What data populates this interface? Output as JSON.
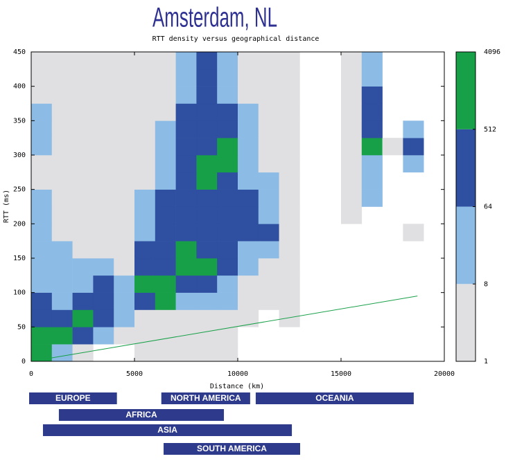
{
  "chart_data": {
    "type": "heatmap",
    "title": "Amsterdam, NL",
    "subtitle": "RTT density versus geographical distance",
    "x_label": "Distance (km)",
    "y_label": "RTT (ms)",
    "xlim": [
      0,
      20000
    ],
    "xticks": [
      0,
      5000,
      10000,
      15000,
      20000
    ],
    "ylim": [
      0,
      450
    ],
    "yticks": [
      0,
      50,
      100,
      150,
      200,
      250,
      300,
      350,
      400,
      450
    ],
    "xbins": [
      0,
      1000,
      2000,
      3000,
      4000,
      5000,
      6000,
      7000,
      8000,
      9000,
      10000,
      11000,
      12000,
      13000,
      14000,
      15000,
      16000,
      17000,
      18000,
      19000,
      20000
    ],
    "ybins": [
      0,
      25,
      50,
      75,
      100,
      125,
      150,
      175,
      200,
      225,
      250,
      275,
      300,
      325,
      350,
      375,
      400,
      425,
      450
    ],
    "z": [
      [
        1000,
        20,
        3,
        0,
        0,
        3,
        3,
        3,
        3,
        3,
        0,
        0,
        0,
        0,
        0,
        0,
        0,
        0,
        0,
        0
      ],
      [
        1000,
        1000,
        150,
        20,
        3,
        3,
        3,
        3,
        3,
        3,
        0,
        0,
        0,
        0,
        0,
        0,
        0,
        0,
        0,
        0
      ],
      [
        150,
        150,
        1000,
        150,
        20,
        3,
        3,
        3,
        3,
        3,
        3,
        0,
        3,
        0,
        0,
        0,
        0,
        0,
        0,
        0
      ],
      [
        150,
        20,
        150,
        150,
        20,
        150,
        1000,
        20,
        20,
        20,
        3,
        3,
        3,
        0,
        0,
        0,
        0,
        0,
        0,
        0
      ],
      [
        20,
        20,
        20,
        150,
        20,
        1000,
        1000,
        150,
        150,
        20,
        3,
        3,
        3,
        0,
        0,
        0,
        0,
        0,
        0,
        0
      ],
      [
        20,
        20,
        20,
        20,
        3,
        150,
        150,
        1000,
        1000,
        150,
        20,
        3,
        3,
        0,
        0,
        0,
        0,
        0,
        0,
        0
      ],
      [
        20,
        20,
        3,
        3,
        3,
        150,
        150,
        1000,
        150,
        150,
        20,
        20,
        3,
        0,
        0,
        0,
        0,
        0,
        0,
        0
      ],
      [
        20,
        3,
        3,
        3,
        3,
        20,
        150,
        150,
        150,
        150,
        150,
        150,
        3,
        0,
        0,
        0,
        0,
        0,
        3,
        0
      ],
      [
        20,
        3,
        3,
        3,
        3,
        20,
        150,
        150,
        150,
        150,
        150,
        20,
        3,
        0,
        0,
        3,
        0,
        0,
        0,
        0
      ],
      [
        20,
        3,
        3,
        3,
        3,
        20,
        150,
        150,
        150,
        150,
        150,
        20,
        3,
        0,
        0,
        3,
        20,
        0,
        0,
        0
      ],
      [
        3,
        3,
        3,
        3,
        3,
        3,
        20,
        150,
        1000,
        150,
        20,
        20,
        3,
        0,
        0,
        3,
        20,
        0,
        0,
        0
      ],
      [
        3,
        3,
        3,
        3,
        3,
        3,
        20,
        150,
        1000,
        1000,
        20,
        3,
        3,
        0,
        0,
        3,
        20,
        0,
        20,
        0
      ],
      [
        20,
        3,
        3,
        3,
        3,
        3,
        20,
        150,
        150,
        1000,
        20,
        3,
        3,
        0,
        0,
        3,
        1000,
        3,
        150,
        0
      ],
      [
        20,
        3,
        3,
        3,
        3,
        3,
        20,
        150,
        150,
        150,
        20,
        3,
        3,
        0,
        0,
        3,
        150,
        0,
        20,
        0
      ],
      [
        20,
        3,
        3,
        3,
        3,
        3,
        3,
        150,
        150,
        150,
        20,
        3,
        3,
        0,
        0,
        3,
        150,
        0,
        0,
        0
      ],
      [
        3,
        3,
        3,
        3,
        3,
        3,
        3,
        20,
        150,
        20,
        3,
        3,
        3,
        0,
        0,
        3,
        150,
        0,
        0,
        0
      ],
      [
        3,
        3,
        3,
        3,
        3,
        3,
        3,
        20,
        150,
        20,
        3,
        3,
        3,
        0,
        0,
        3,
        20,
        0,
        0,
        0
      ],
      [
        3,
        3,
        3,
        3,
        3,
        3,
        3,
        20,
        150,
        20,
        3,
        3,
        3,
        0,
        0,
        3,
        20,
        0,
        0,
        0
      ]
    ],
    "colorbar": {
      "ticks": [
        1,
        8,
        64,
        512,
        4096
      ],
      "colors": [
        "#e0e0e2",
        "#8cbce6",
        "#2f4fa0",
        "#18a048"
      ],
      "log": true
    },
    "line": {
      "color": "#18a048",
      "x": [
        0,
        18700
      ],
      "values": [
        0,
        95
      ]
    },
    "regions": [
      {
        "name": "EUROPE",
        "range": [
          -100,
          4150
        ]
      },
      {
        "name": "NORTH AMERICA",
        "range": [
          6300,
          10600
        ]
      },
      {
        "name": "OCEANIA",
        "range": [
          10870,
          18520
        ]
      },
      {
        "name": "AFRICA",
        "range": [
          1340,
          9330
        ]
      },
      {
        "name": "ASIA",
        "range": [
          570,
          12620
        ]
      },
      {
        "name": "SOUTH AMERICA",
        "range": [
          6410,
          13020
        ]
      }
    ]
  }
}
